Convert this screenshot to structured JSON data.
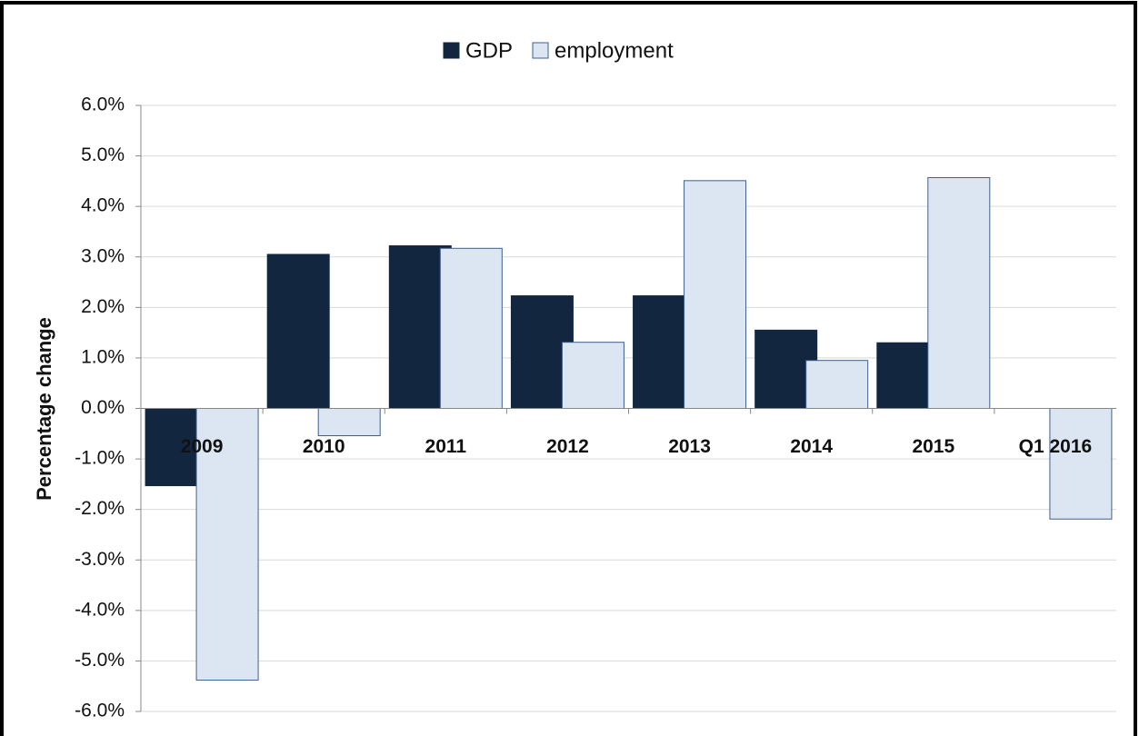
{
  "chart_data": {
    "type": "bar",
    "y_label": "Percentage change",
    "categories": [
      "2009",
      "2010",
      "2011",
      "2012",
      "2013",
      "2014",
      "2015",
      "Q1 2016"
    ],
    "series": [
      {
        "name": "GDP",
        "color": "#13263f",
        "values": [
          -1.53,
          3.05,
          3.22,
          2.23,
          2.23,
          1.55,
          1.3,
          null
        ]
      },
      {
        "name": "employment",
        "color": "#dce6f2",
        "values": [
          -5.38,
          -0.54,
          3.17,
          1.31,
          4.51,
          0.95,
          4.57,
          -2.19
        ]
      }
    ],
    "ylim": [
      -6,
      6
    ],
    "yticks": [
      {
        "value": -6,
        "label": "-6.0%"
      },
      {
        "value": -5,
        "label": "-5.0%"
      },
      {
        "value": -4,
        "label": "-4.0%"
      },
      {
        "value": -3,
        "label": "-3.0%"
      },
      {
        "value": -2,
        "label": "-2.0%"
      },
      {
        "value": -1,
        "label": "-1.0%"
      },
      {
        "value": 0,
        "label": "0.0%"
      },
      {
        "value": 1,
        "label": "1.0%"
      },
      {
        "value": 2,
        "label": "2.0%"
      },
      {
        "value": 3,
        "label": "3.0%"
      },
      {
        "value": 4,
        "label": "4.0%"
      },
      {
        "value": 5,
        "label": "5.0%"
      },
      {
        "value": 6,
        "label": "6.0%"
      }
    ],
    "grid": true,
    "legend": "top"
  }
}
